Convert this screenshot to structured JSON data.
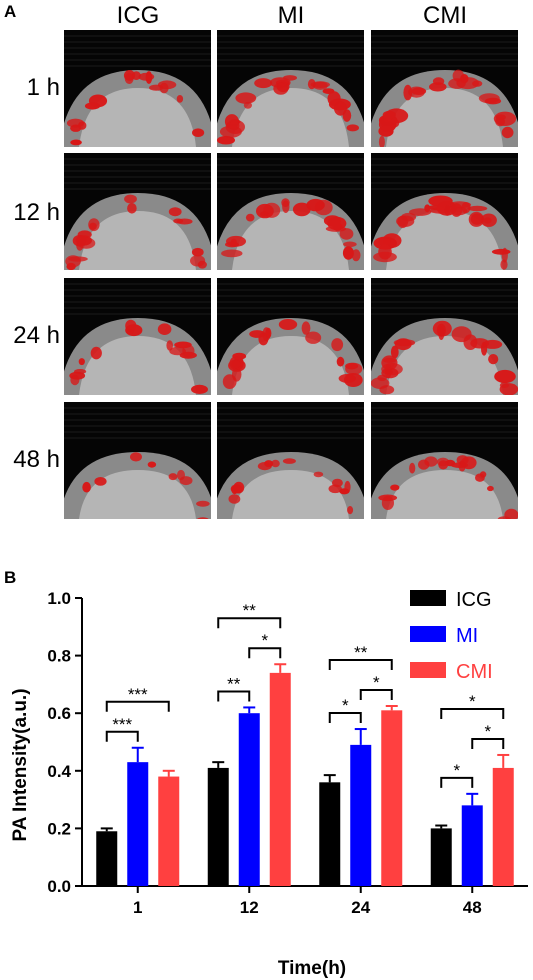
{
  "panel_a": {
    "letter": "A",
    "columns": [
      "ICG",
      "MI",
      "CMI"
    ],
    "rows": [
      "1 h",
      "12 h",
      "24 h",
      "48 h"
    ],
    "signal_color": "#d81818",
    "signal_level": [
      [
        0.45,
        0.75,
        0.85
      ],
      [
        0.55,
        0.7,
        0.95
      ],
      [
        0.4,
        0.65,
        0.8
      ],
      [
        0.15,
        0.35,
        0.55
      ]
    ]
  },
  "panel_b": {
    "letter": "B"
  },
  "chart_data": {
    "type": "bar",
    "xlabel": "Time(h)",
    "ylabel": "PA Intensity(a.u.)",
    "ylim": [
      0.0,
      1.0
    ],
    "yticks": [
      "0.0",
      "0.2",
      "0.4",
      "0.6",
      "0.8",
      "1.0"
    ],
    "categories": [
      "1",
      "12",
      "24",
      "48"
    ],
    "legend_position": "top-right",
    "series": [
      {
        "name": "ICG",
        "color": "#000000",
        "values": [
          0.19,
          0.41,
          0.36,
          0.2
        ],
        "errors": [
          0.01,
          0.02,
          0.025,
          0.01
        ]
      },
      {
        "name": "MI",
        "color": "#0000ff",
        "values": [
          0.43,
          0.6,
          0.49,
          0.28
        ],
        "errors": [
          0.05,
          0.02,
          0.055,
          0.04
        ]
      },
      {
        "name": "CMI",
        "color": "#ff4040",
        "values": [
          0.38,
          0.74,
          0.61,
          0.41
        ],
        "errors": [
          0.02,
          0.03,
          0.015,
          0.045
        ]
      }
    ],
    "significance": [
      {
        "group": "1",
        "from": "ICG",
        "to": "MI",
        "label": "***"
      },
      {
        "group": "1",
        "from": "ICG",
        "to": "CMI",
        "label": "***"
      },
      {
        "group": "12",
        "from": "ICG",
        "to": "MI",
        "label": "**"
      },
      {
        "group": "12",
        "from": "MI",
        "to": "CMI",
        "label": "*"
      },
      {
        "group": "12",
        "from": "ICG",
        "to": "CMI",
        "label": "**"
      },
      {
        "group": "24",
        "from": "ICG",
        "to": "MI",
        "label": "*"
      },
      {
        "group": "24",
        "from": "MI",
        "to": "CMI",
        "label": "*"
      },
      {
        "group": "24",
        "from": "ICG",
        "to": "CMI",
        "label": "**"
      },
      {
        "group": "48",
        "from": "ICG",
        "to": "MI",
        "label": "*"
      },
      {
        "group": "48",
        "from": "MI",
        "to": "CMI",
        "label": "*"
      },
      {
        "group": "48",
        "from": "ICG",
        "to": "CMI",
        "label": "*"
      }
    ]
  }
}
